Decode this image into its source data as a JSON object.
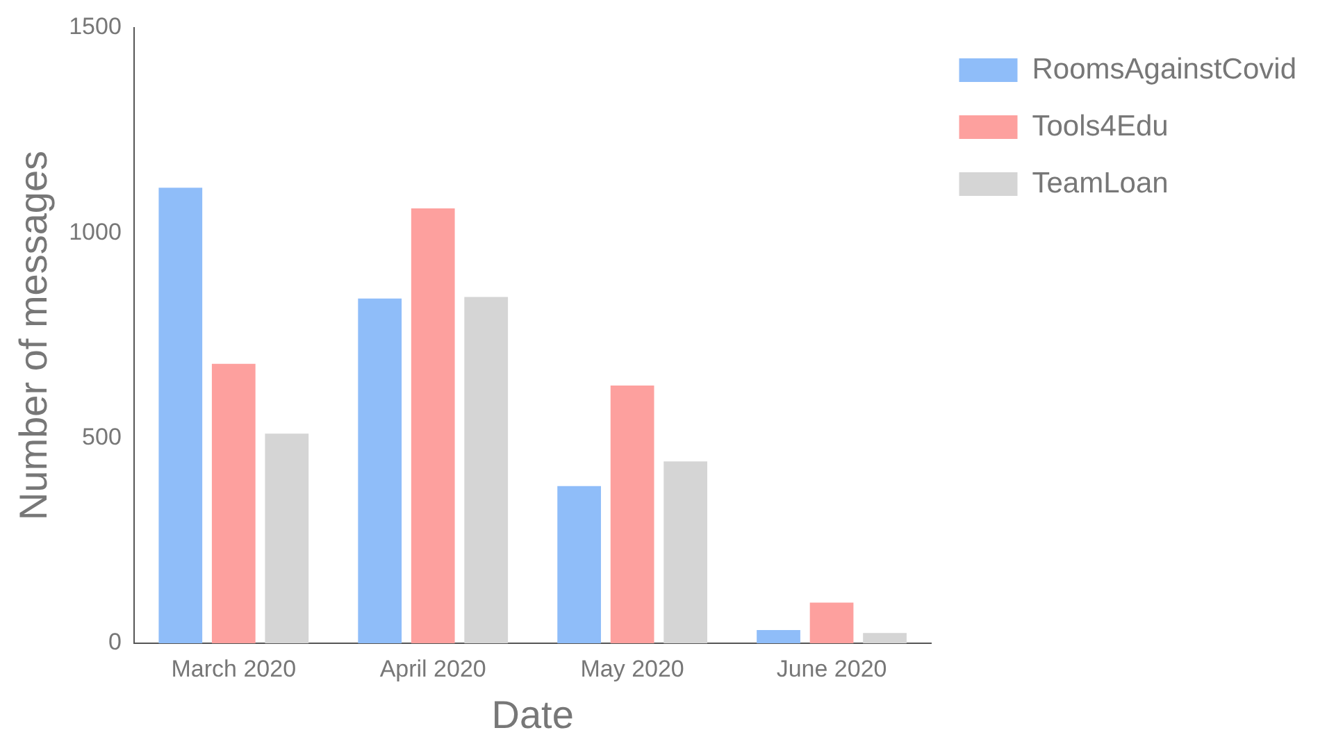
{
  "chart_data": {
    "type": "bar",
    "xlabel": "Date",
    "ylabel": "Number of messages",
    "categories": [
      "March 2020",
      "April 2020",
      "May 2020",
      "June 2020"
    ],
    "series": [
      {
        "name": "RoomsAgainstCovid",
        "color": "#8fbdf9",
        "values": [
          1110,
          840,
          383,
          32
        ]
      },
      {
        "name": "Tools4Edu",
        "color": "#fda09e",
        "values": [
          681,
          1060,
          628,
          99
        ]
      },
      {
        "name": "TeamLoan",
        "color": "#d5d5d5",
        "values": [
          511,
          844,
          443,
          25
        ]
      }
    ],
    "ylim": [
      0,
      1500
    ],
    "yticks": [
      0,
      500,
      1000,
      1500
    ],
    "grid": false,
    "legend": "top right"
  }
}
